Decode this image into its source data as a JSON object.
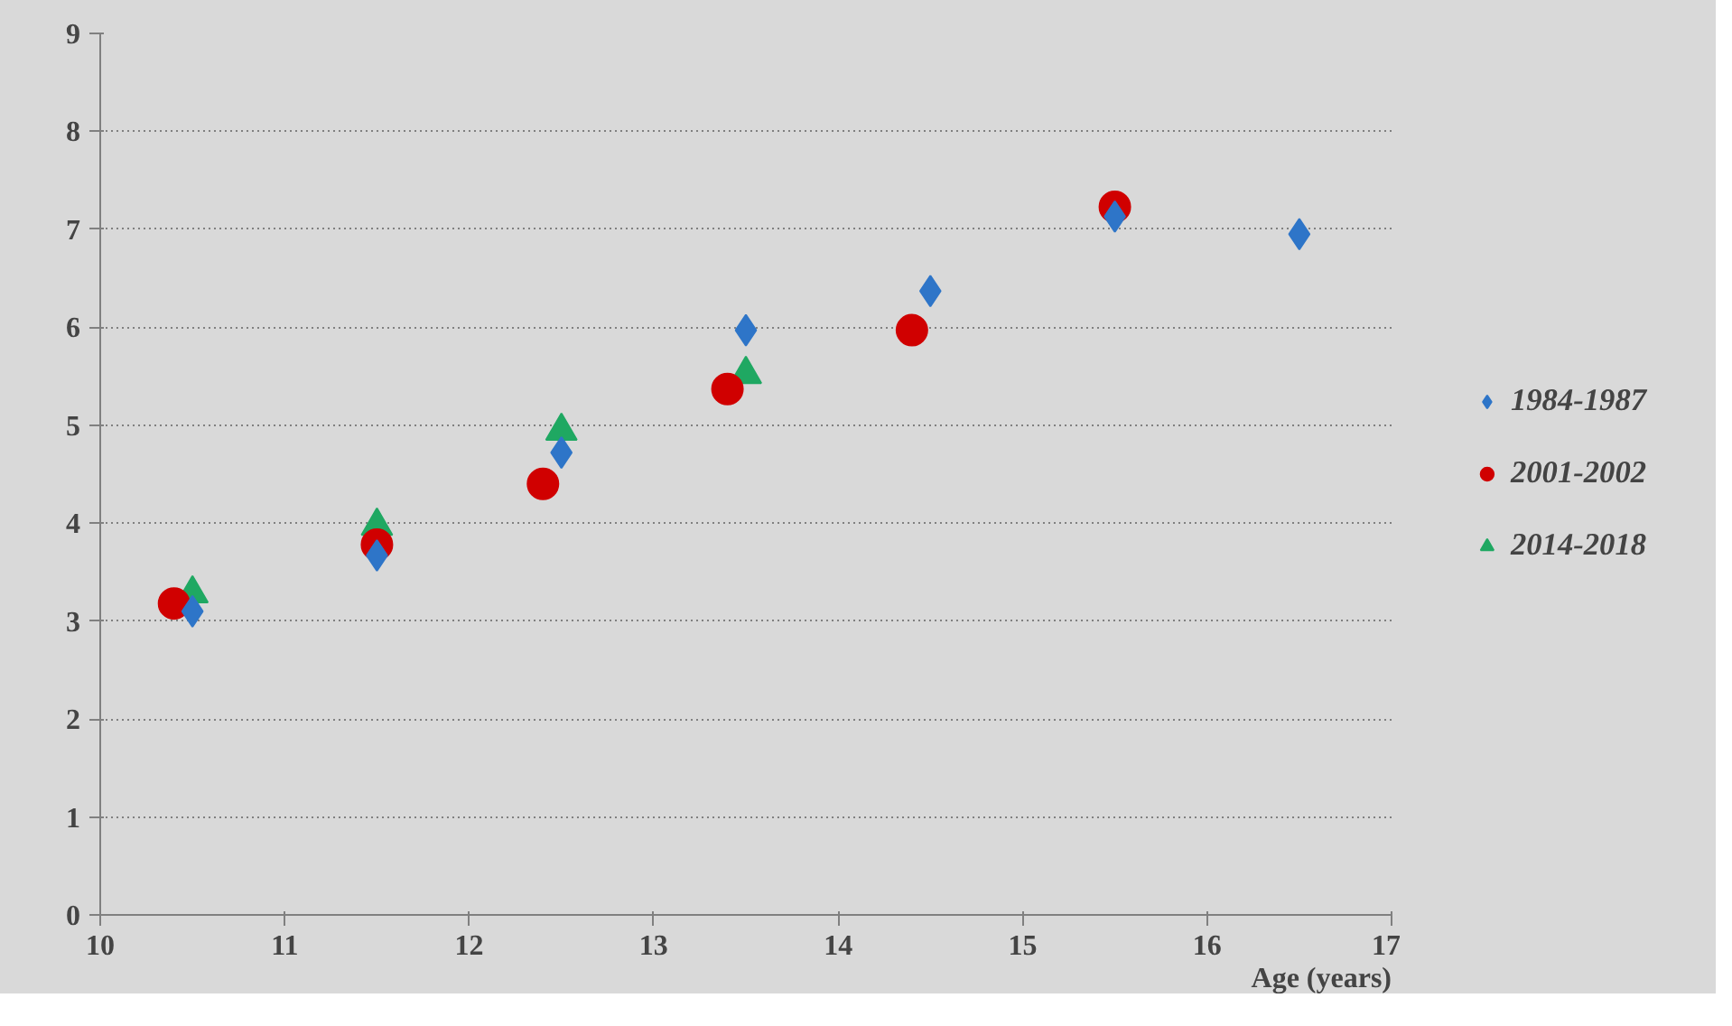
{
  "chart_data": {
    "type": "scatter",
    "xlabel": "Age (years)",
    "xlim": [
      10,
      17
    ],
    "xticks": [
      10,
      11,
      12,
      13,
      14,
      15,
      16,
      17
    ],
    "ylim": [
      0,
      9
    ],
    "yticks": [
      0,
      1,
      2,
      3,
      4,
      5,
      6,
      7,
      8,
      9
    ],
    "grid": "y",
    "legend": "right",
    "series": [
      {
        "name": "1984-1987",
        "color": "#2e75c8",
        "marker": "diamond",
        "x": [
          10.5,
          11.5,
          12.5,
          13.5,
          14.5,
          15.5,
          16.5
        ],
        "values": [
          3.1,
          3.67,
          4.72,
          5.97,
          6.37,
          7.13,
          6.95
        ]
      },
      {
        "name": "2001-2002",
        "color": "#d00000",
        "marker": "circle",
        "x": [
          10.4,
          11.5,
          12.4,
          13.4,
          14.4,
          15.5
        ],
        "values": [
          3.18,
          3.78,
          4.4,
          5.37,
          5.97,
          7.23
        ]
      },
      {
        "name": "2014-2018",
        "color": "#1fa862",
        "marker": "triangle",
        "x": [
          10.5,
          11.5,
          12.5,
          13.5
        ],
        "values": [
          3.28,
          3.97,
          4.94,
          5.52
        ]
      }
    ]
  }
}
